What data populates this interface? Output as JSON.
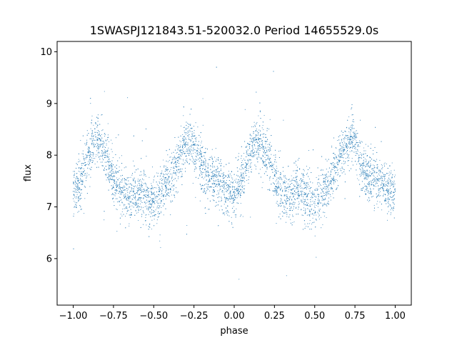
{
  "chart_data": {
    "type": "scatter",
    "title": "1SWASPJ121843.51-520032.0 Period 14655529.0s",
    "xlabel": "phase",
    "ylabel": "flux",
    "xlim": [
      -1.1,
      1.1
    ],
    "ylim": [
      5.1,
      10.2
    ],
    "xticks": [
      -1.0,
      -0.75,
      -0.5,
      -0.25,
      0.0,
      0.25,
      0.5,
      0.75,
      1.0
    ],
    "xtick_labels": [
      "−1.00",
      "−0.75",
      "−0.50",
      "−0.25",
      "0.00",
      "0.25",
      "0.50",
      "0.75",
      "1.00"
    ],
    "yticks": [
      6,
      7,
      8,
      9,
      10
    ],
    "ytick_labels": [
      "6",
      "7",
      "8",
      "9",
      "10"
    ],
    "grid": false,
    "legend": "none",
    "marker_color": "#1f77b4",
    "series": [
      {
        "x": [
          -1.0,
          -0.975,
          -0.95,
          -0.925,
          -0.9,
          -0.875,
          -0.85,
          -0.825,
          -0.8,
          -0.775,
          -0.75,
          -0.725,
          -0.7,
          -0.675,
          -0.65,
          -0.625,
          -0.6,
          -0.575,
          -0.55,
          -0.525,
          -0.5,
          -0.475,
          -0.45,
          -0.425,
          -0.4,
          -0.375,
          -0.35,
          -0.325,
          -0.3,
          -0.275,
          -0.25,
          -0.225,
          -0.2,
          -0.175,
          -0.15,
          -0.125,
          -0.1,
          -0.075,
          -0.05,
          -0.025,
          0.0,
          0.025,
          0.05,
          0.075,
          0.1,
          0.125,
          0.15,
          0.175,
          0.2,
          0.225,
          0.25,
          0.275,
          0.3,
          0.325,
          0.35,
          0.375,
          0.4,
          0.425,
          0.45,
          0.475,
          0.5,
          0.525,
          0.55,
          0.575,
          0.6,
          0.625,
          0.65,
          0.675,
          0.7,
          0.725,
          0.75,
          0.775,
          0.8,
          0.825,
          0.85,
          0.875,
          0.9,
          0.925,
          0.95,
          0.975,
          1.0
        ],
        "y": [
          7.3,
          7.4,
          7.5,
          7.8,
          8.0,
          8.2,
          8.3,
          8.2,
          8.0,
          7.8,
          7.6,
          7.4,
          7.3,
          7.2,
          7.2,
          7.3,
          7.3,
          7.3,
          7.2,
          7.1,
          7.1,
          7.2,
          7.3,
          7.4,
          7.5,
          7.7,
          7.9,
          8.1,
          8.2,
          8.3,
          8.2,
          8.0,
          7.8,
          7.6,
          7.5,
          7.5,
          7.5,
          7.4,
          7.3,
          7.3,
          7.3,
          7.4,
          7.5,
          7.8,
          8.0,
          8.2,
          8.3,
          8.2,
          8.0,
          7.8,
          7.6,
          7.4,
          7.3,
          7.2,
          7.2,
          7.3,
          7.3,
          7.3,
          7.2,
          7.1,
          7.1,
          7.2,
          7.3,
          7.4,
          7.5,
          7.7,
          7.9,
          8.1,
          8.2,
          8.3,
          8.2,
          8.0,
          7.8,
          7.6,
          7.5,
          7.5,
          7.5,
          7.4,
          7.3,
          7.3,
          7.3
        ],
        "spread": 0.45
      }
    ]
  }
}
